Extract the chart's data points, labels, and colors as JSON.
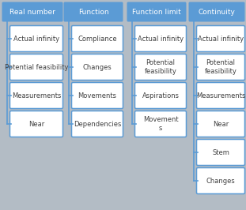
{
  "background_color": "#b3bcc5",
  "header_bg": "#5b9bd5",
  "header_text_color": "white",
  "box_bg": "white",
  "box_border": "#5b9bd5",
  "line_color": "#5b9bd5",
  "text_color": "#404040",
  "columns": [
    {
      "header": "Real number",
      "items": [
        "Actual infinity",
        "Potential feasibility",
        "Measurements",
        "Near"
      ]
    },
    {
      "header": "Function",
      "items": [
        "Compliance",
        "Changes",
        "Movements",
        "Dependencies"
      ]
    },
    {
      "header": "Function limit",
      "items": [
        "Actual infinity",
        "Potential\nfeasibility",
        "Aspirations",
        "Movement\ns"
      ]
    },
    {
      "header": "Continuity",
      "items": [
        "Actual infinity",
        "Potential\nfeasibility",
        "Measurements",
        "Near",
        "Stem",
        "Changes"
      ]
    }
  ],
  "figsize": [
    3.11,
    2.66
  ],
  "dpi": 100,
  "font_size_header": 6.5,
  "font_size_item": 6.0
}
